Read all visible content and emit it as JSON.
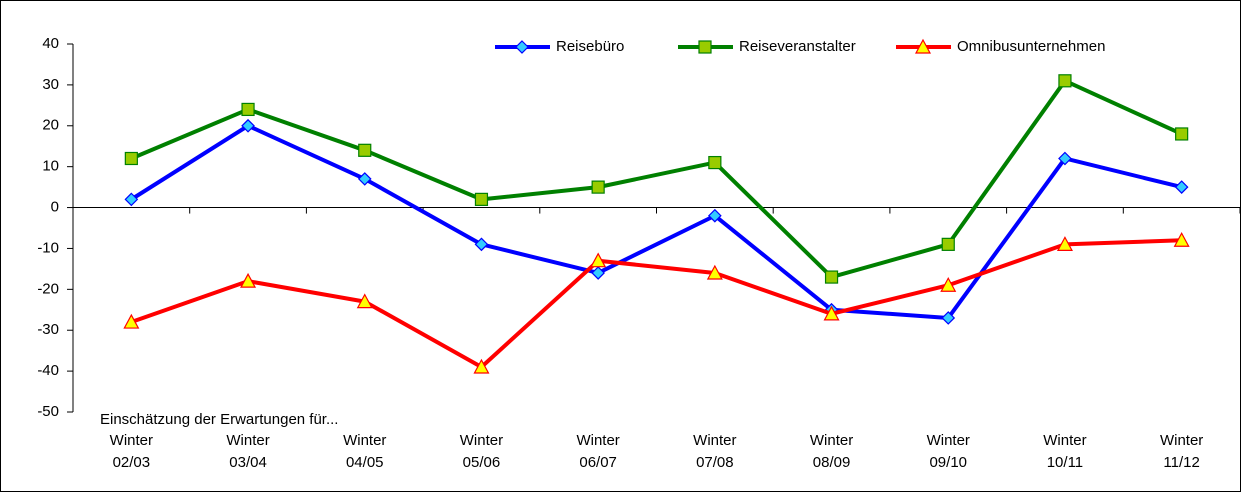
{
  "chart_data": {
    "type": "line",
    "annotation": "Einschätzung der Erwartungen für...",
    "categories": [
      "Winter\n02/03",
      "Winter\n03/04",
      "Winter\n04/05",
      "Winter\n05/06",
      "Winter\n06/07",
      "Winter\n07/08",
      "Winter\n08/09",
      "Winter\n09/10",
      "Winter\n10/11",
      "Winter\n11/12"
    ],
    "series": [
      {
        "name": "Reisebüro",
        "color": "#0000ff",
        "marker": "diamond",
        "marker_color": "#33ccff",
        "values": [
          2,
          20,
          7,
          -9,
          -16,
          -2,
          -25,
          -27,
          12,
          5
        ]
      },
      {
        "name": "Reiseveranstalter",
        "color": "#008000",
        "marker": "square",
        "marker_color": "#99cc00",
        "values": [
          12,
          24,
          14,
          2,
          5,
          11,
          -17,
          -9,
          31,
          18
        ]
      },
      {
        "name": "Omnibusunternehmen",
        "color": "#ff0000",
        "marker": "triangle",
        "marker_color": "#ffff00",
        "values": [
          -28,
          -18,
          -23,
          -39,
          -13,
          -16,
          -26,
          -19,
          -9,
          -8
        ]
      }
    ],
    "ylim": [
      -50,
      40
    ],
    "yticks": [
      -50,
      -40,
      -30,
      -20,
      -10,
      0,
      10,
      20,
      30,
      40
    ],
    "grid": false,
    "legend": "top"
  }
}
